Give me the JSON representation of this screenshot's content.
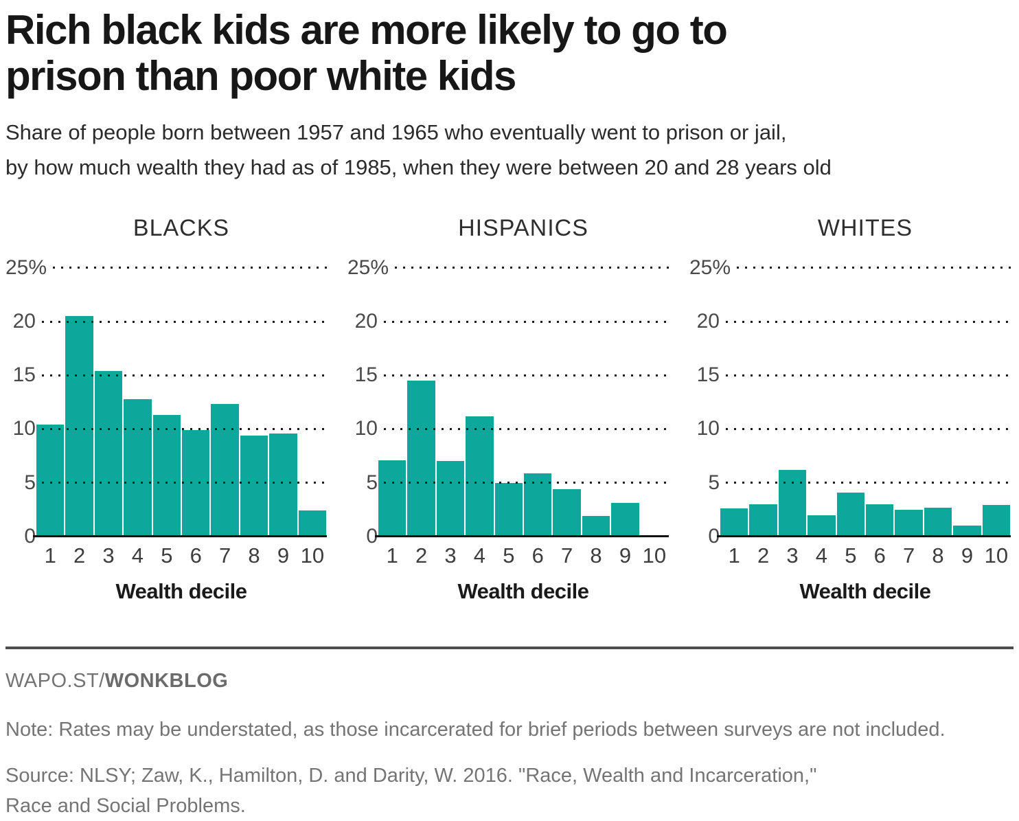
{
  "header": {
    "title": "Rich black kids are more likely to go to\nprison than poor white kids",
    "subtitle": "Share of people born between 1957 and 1965 who eventually went to prison or jail,\nby how much wealth they had as of 1985, when they were between 20 and 28 years old"
  },
  "chart_data": [
    {
      "type": "bar",
      "title": "BLACKS",
      "categories": [
        "1",
        "2",
        "3",
        "4",
        "5",
        "6",
        "7",
        "8",
        "9",
        "10"
      ],
      "values": [
        10.4,
        20.5,
        15.4,
        12.8,
        11.3,
        9.9,
        12.3,
        9.4,
        9.6,
        2.4
      ],
      "xlabel": "Wealth decile",
      "ylabel": "",
      "ylim": [
        0,
        25
      ],
      "yticks": [
        {
          "value": 25,
          "label": "25%"
        },
        {
          "value": 20,
          "label": "20"
        },
        {
          "value": 15,
          "label": "15"
        },
        {
          "value": 10,
          "label": "10"
        },
        {
          "value": 5,
          "label": "5"
        },
        {
          "value": 0,
          "label": "0"
        }
      ],
      "grid": "dotted-horizontal",
      "legend": "none"
    },
    {
      "type": "bar",
      "title": "HISPANICS",
      "categories": [
        "1",
        "2",
        "3",
        "4",
        "5",
        "6",
        "7",
        "8",
        "9",
        "10"
      ],
      "values": [
        7.1,
        14.5,
        7.0,
        11.2,
        5.0,
        5.9,
        4.4,
        1.9,
        3.1,
        0
      ],
      "xlabel": "Wealth decile",
      "ylabel": "",
      "ylim": [
        0,
        25
      ],
      "yticks": [
        {
          "value": 25,
          "label": "25%"
        },
        {
          "value": 20,
          "label": "20"
        },
        {
          "value": 15,
          "label": "15"
        },
        {
          "value": 10,
          "label": "10"
        },
        {
          "value": 5,
          "label": "5"
        },
        {
          "value": 0,
          "label": "0"
        }
      ],
      "grid": "dotted-horizontal",
      "legend": "none"
    },
    {
      "type": "bar",
      "title": "WHITES",
      "categories": [
        "1",
        "2",
        "3",
        "4",
        "5",
        "6",
        "7",
        "8",
        "9",
        "10"
      ],
      "values": [
        2.6,
        3.0,
        6.2,
        2.0,
        4.1,
        3.0,
        2.5,
        2.7,
        1.0,
        2.9
      ],
      "xlabel": "Wealth decile",
      "ylabel": "",
      "ylim": [
        0,
        25
      ],
      "yticks": [
        {
          "value": 25,
          "label": "25%"
        },
        {
          "value": 20,
          "label": "20"
        },
        {
          "value": 15,
          "label": "15"
        },
        {
          "value": 10,
          "label": "10"
        },
        {
          "value": 5,
          "label": "5"
        },
        {
          "value": 0,
          "label": "0"
        }
      ],
      "grid": "dotted-horizontal",
      "legend": "none"
    }
  ],
  "footer": {
    "brand_prefix": "WAPO.ST/",
    "brand_bold": "WONKBLOG",
    "note": "Note: Rates may be understated, as those incarcerated for brief periods between surveys are not included.",
    "source": "Source: NLSY; Zaw, K., Hamilton, D. and Darity, W. 2016. \"Race, Wealth and Incarceration,\"\nRace and Social Problems."
  },
  "colors": {
    "bar": "#0ea79b",
    "grid_dot": "#1c1c1c",
    "axis": "#121212",
    "divider": "#4e4e4e"
  }
}
